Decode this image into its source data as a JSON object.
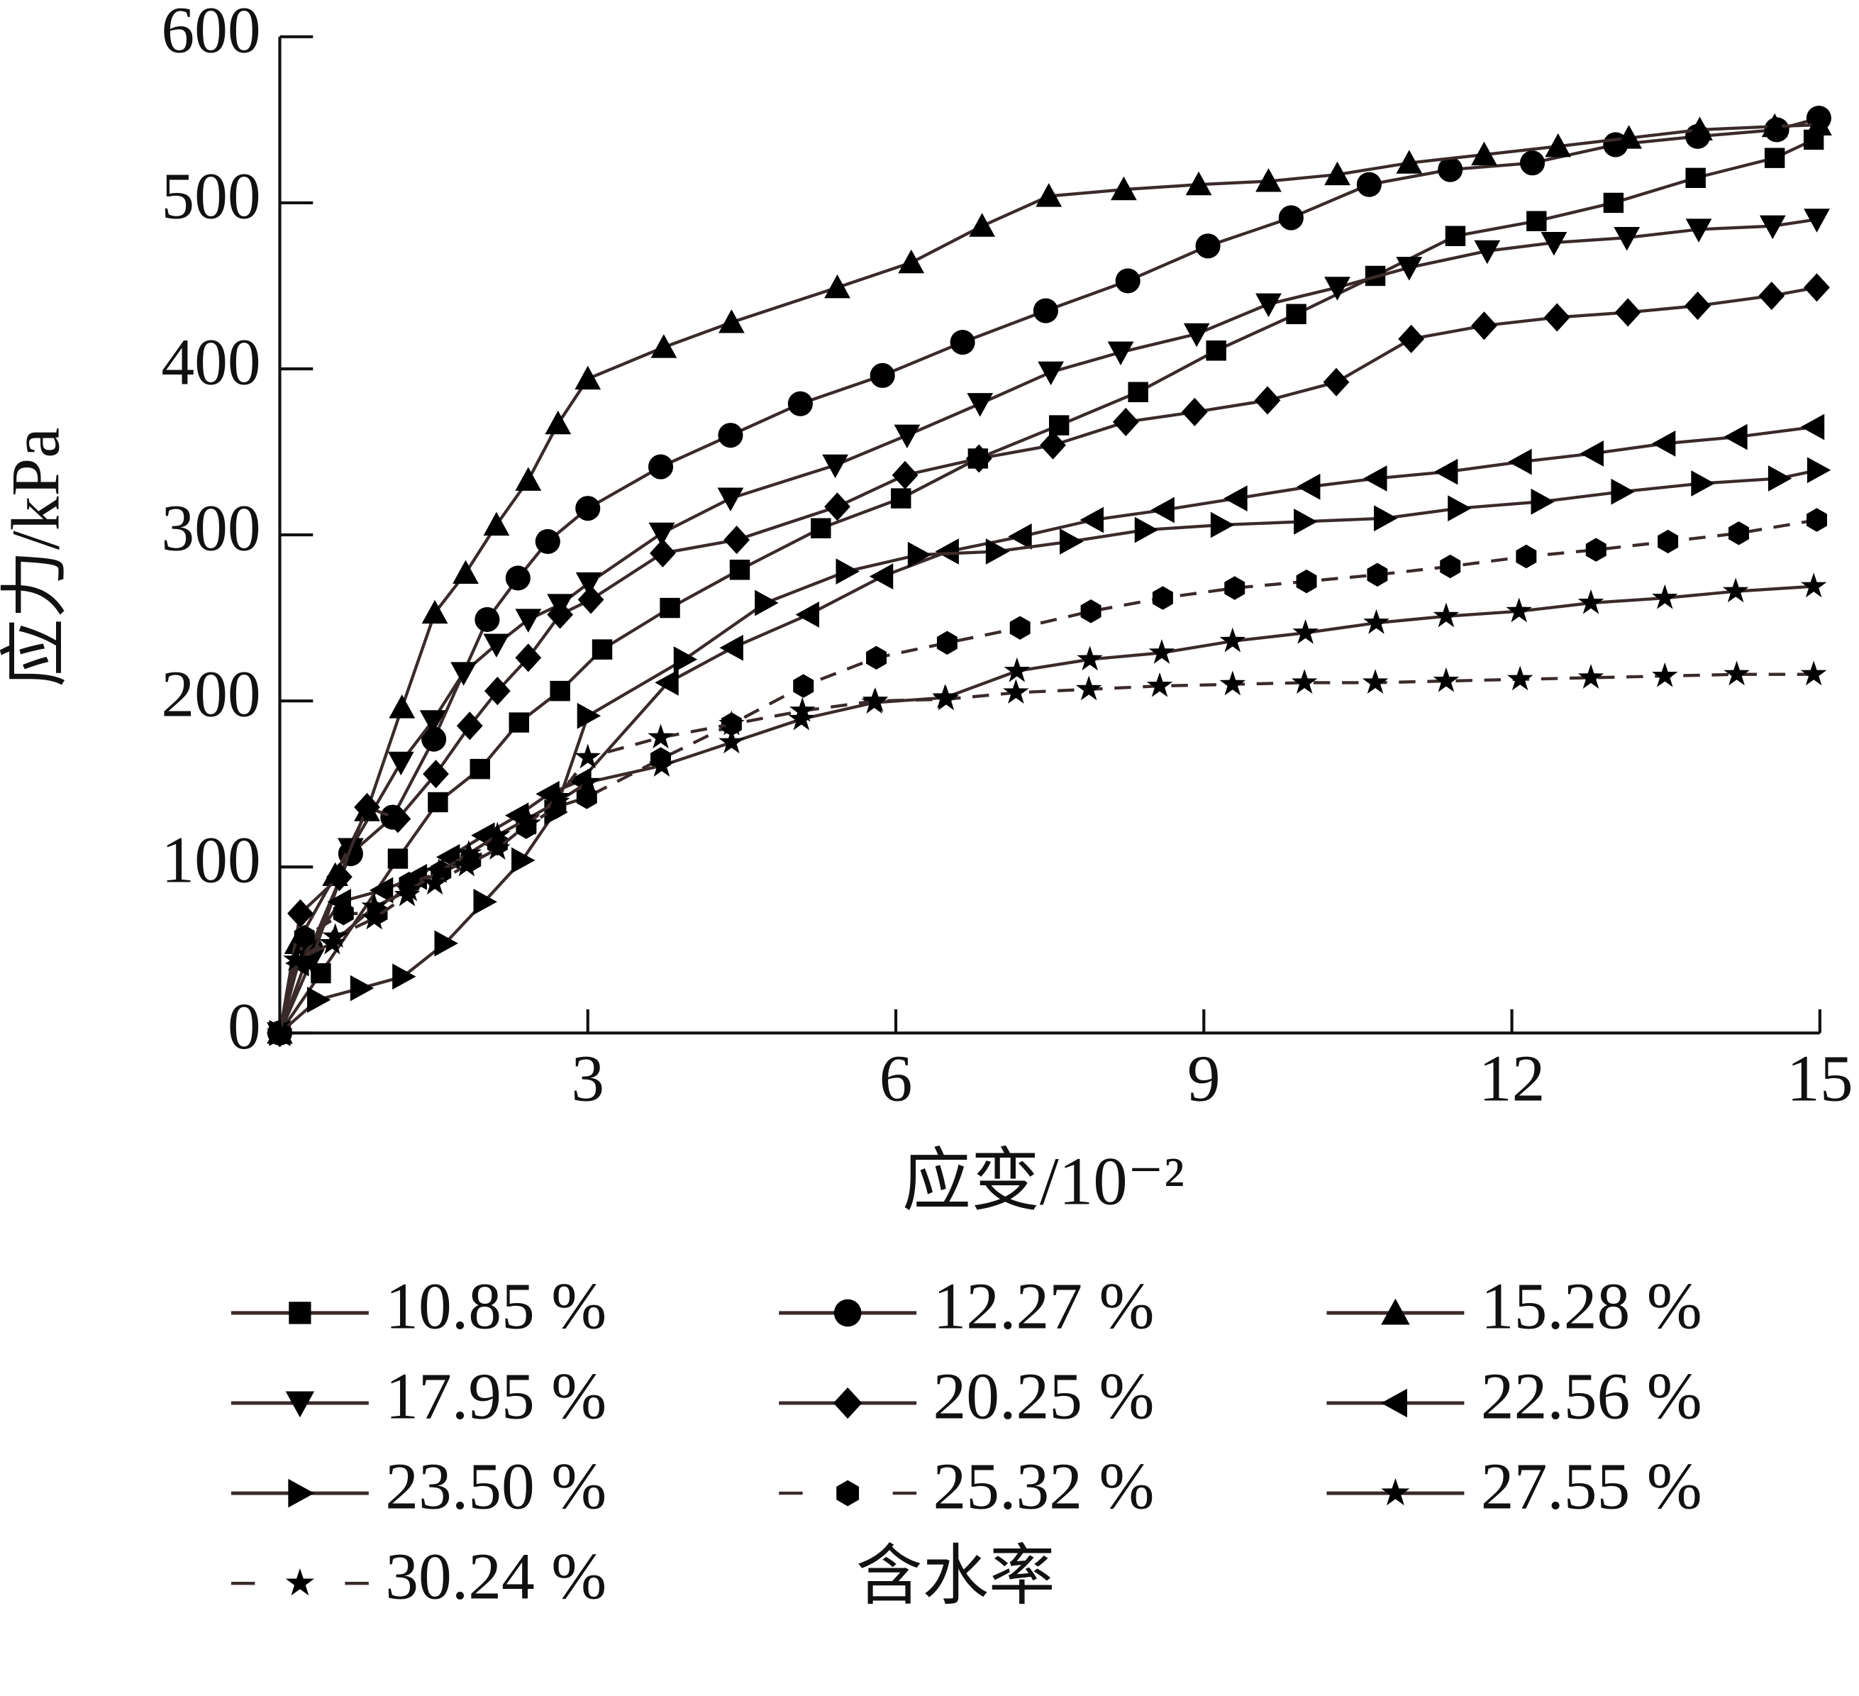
{
  "chart_data": {
    "type": "line",
    "x_label": "应变/10⁻²",
    "y_label": "应力/kPa",
    "legend_title": "含水率",
    "xlim": [
      0,
      15
    ],
    "ylim": [
      0,
      600
    ],
    "xticks": [
      3,
      6,
      9,
      12,
      15
    ],
    "yticks": [
      0,
      100,
      200,
      300,
      400,
      500,
      600
    ],
    "line_color": "#3a2a2a",
    "marker_color": "#000000",
    "legend_columns": 3,
    "series": [
      {
        "name": "10.85 %",
        "marker": "square",
        "dashed": false,
        "x": [
          0,
          0.4,
          1.15,
          1.54,
          1.95,
          2.33,
          2.73,
          3.14,
          3.8,
          4.48,
          5.27,
          6.05,
          6.8,
          7.59,
          8.36,
          9.12,
          9.9,
          10.67,
          11.45,
          12.24,
          12.99,
          13.79,
          14.56,
          14.94
        ],
        "values": [
          0,
          36,
          105,
          139,
          159,
          187,
          206,
          231,
          256,
          279,
          304,
          322,
          346,
          366,
          386,
          411,
          433,
          456,
          480,
          489,
          500,
          515,
          527,
          538
        ]
      },
      {
        "name": "12.27 %",
        "marker": "circle",
        "dashed": false,
        "x": [
          0,
          0.3,
          0.69,
          1.1,
          1.5,
          2.02,
          2.32,
          2.61,
          3.0,
          3.71,
          4.39,
          5.07,
          5.87,
          6.65,
          7.46,
          8.26,
          9.04,
          9.85,
          10.61,
          11.4,
          12.2,
          13.01,
          13.81,
          14.58,
          14.99
        ],
        "values": [
          0,
          51,
          108,
          130,
          177,
          249,
          274,
          296,
          316,
          341,
          360,
          379,
          396,
          416,
          435,
          453,
          474,
          491,
          511,
          520,
          524,
          535,
          540,
          544,
          551
        ]
      },
      {
        "name": "15.28 %",
        "marker": "triangle-up",
        "dashed": false,
        "x": [
          0,
          0.17,
          0.54,
          0.85,
          1.19,
          1.51,
          1.81,
          2.11,
          2.42,
          2.71,
          3.0,
          3.74,
          4.4,
          5.43,
          6.15,
          6.84,
          7.49,
          8.22,
          8.95,
          9.63,
          10.3,
          11.0,
          11.73,
          12.45,
          13.14,
          13.83,
          14.56,
          14.99
        ],
        "values": [
          0,
          54,
          95,
          134,
          196,
          253,
          277,
          306,
          333,
          367,
          394,
          413,
          428,
          449,
          464,
          486,
          504,
          508,
          511,
          513,
          517,
          524,
          529,
          534,
          539,
          544,
          546,
          547
        ]
      },
      {
        "name": "17.95 %",
        "marker": "triangle-down",
        "dashed": false,
        "x": [
          0,
          0.31,
          0.69,
          1.18,
          1.49,
          1.79,
          2.11,
          2.42,
          2.73,
          3.01,
          3.72,
          4.39,
          5.41,
          6.11,
          6.82,
          7.51,
          8.19,
          8.93,
          9.63,
          10.3,
          11.0,
          11.76,
          12.41,
          13.12,
          13.82,
          14.54,
          14.97
        ],
        "values": [
          0,
          44,
          111,
          163,
          188,
          217,
          234,
          249,
          258,
          271,
          301,
          322,
          342,
          360,
          379,
          398,
          410,
          421,
          439,
          449,
          461,
          471,
          476,
          479,
          484,
          486,
          490
        ]
      },
      {
        "name": "20.25 %",
        "marker": "diamond",
        "dashed": false,
        "x": [
          0,
          0.2,
          0.58,
          0.85,
          1.15,
          1.52,
          1.85,
          2.12,
          2.42,
          2.73,
          3.03,
          3.73,
          4.45,
          5.43,
          6.09,
          6.81,
          7.53,
          8.24,
          8.91,
          9.62,
          10.29,
          11.02,
          11.73,
          12.44,
          13.13,
          13.81,
          14.53,
          14.97
        ],
        "values": [
          0,
          72,
          94,
          136,
          129,
          156,
          185,
          206,
          226,
          252,
          261,
          289,
          297,
          317,
          336,
          346,
          354,
          368,
          374,
          381,
          392,
          418,
          426,
          431,
          434,
          438,
          444,
          449
        ]
      },
      {
        "name": "22.56 %",
        "marker": "triangle-left",
        "dashed": false,
        "x": [
          0,
          0.18,
          0.59,
          1.0,
          1.33,
          1.65,
          1.99,
          2.32,
          2.62,
          2.93,
          3.78,
          4.41,
          5.15,
          5.87,
          6.51,
          7.22,
          7.92,
          8.61,
          9.32,
          10.03,
          10.68,
          11.37,
          12.09,
          12.79,
          13.49,
          14.19,
          14.94
        ],
        "values": [
          0,
          42,
          79,
          86,
          94,
          106,
          119,
          131,
          144,
          152,
          211,
          232,
          252,
          275,
          290,
          299,
          309,
          315,
          322,
          329,
          334,
          338,
          344,
          349,
          355,
          359,
          365
        ]
      },
      {
        "name": "23.50 %",
        "marker": "triangle-right",
        "dashed": false,
        "x": [
          0,
          0.37,
          0.79,
          1.2,
          1.61,
          1.99,
          2.36,
          2.68,
          3.0,
          3.94,
          4.73,
          5.52,
          6.22,
          6.98,
          7.7,
          8.43,
          9.17,
          9.98,
          10.76,
          11.48,
          12.29,
          13.07,
          13.85,
          14.6,
          14.98
        ],
        "values": [
          0,
          20,
          27,
          34,
          54,
          79,
          104,
          133,
          191,
          225,
          259,
          278,
          288,
          290,
          296,
          303,
          306,
          308,
          310,
          316,
          320,
          326,
          331,
          334,
          339
        ]
      },
      {
        "name": "25.32 %",
        "marker": "hexagon",
        "dashed": true,
        "x": [
          0,
          0.24,
          0.62,
          0.95,
          1.26,
          1.57,
          1.86,
          2.12,
          2.4,
          2.69,
          2.99,
          3.71,
          4.4,
          5.1,
          5.81,
          6.5,
          7.21,
          7.9,
          8.6,
          9.3,
          10.0,
          10.69,
          11.4,
          12.14,
          12.82,
          13.52,
          14.21,
          14.97
        ],
        "values": [
          0,
          58,
          72,
          72,
          90,
          97,
          104,
          114,
          124,
          136,
          142,
          165,
          186,
          209,
          226,
          235,
          244,
          254,
          262,
          268,
          272,
          276,
          281,
          287,
          291,
          296,
          301,
          309
        ]
      },
      {
        "name": "27.55 %",
        "marker": "star",
        "dashed": false,
        "x": [
          0,
          0.16,
          0.51,
          0.92,
          1.26,
          1.55,
          1.84,
          2.12,
          2.41,
          2.7,
          3.0,
          3.72,
          4.4,
          5.08,
          5.79,
          6.48,
          7.18,
          7.89,
          8.59,
          9.28,
          9.99,
          10.68,
          11.36,
          12.07,
          12.77,
          13.49,
          14.18,
          14.94
        ],
        "values": [
          0,
          44,
          54,
          76,
          86,
          97,
          108,
          119,
          129,
          139,
          151,
          161,
          175,
          189,
          199,
          202,
          218,
          225,
          229,
          236,
          241,
          247,
          251,
          254,
          259,
          262,
          266,
          269
        ]
      },
      {
        "name": "30.24 %",
        "marker": "star",
        "dashed": true,
        "x": [
          0,
          0.16,
          0.54,
          0.92,
          1.24,
          1.51,
          1.82,
          2.12,
          2.42,
          2.71,
          3.0,
          3.71,
          4.4,
          5.09,
          5.8,
          6.49,
          7.17,
          7.88,
          8.57,
          9.28,
          9.98,
          10.67,
          11.36,
          12.08,
          12.77,
          13.49,
          14.19,
          14.94
        ],
        "values": [
          0,
          44,
          58,
          69,
          83,
          90,
          101,
          111,
          126,
          142,
          166,
          178,
          186,
          194,
          200,
          201,
          205,
          207,
          209,
          210,
          211,
          211,
          212,
          213,
          214,
          215,
          216,
          216
        ]
      }
    ]
  }
}
